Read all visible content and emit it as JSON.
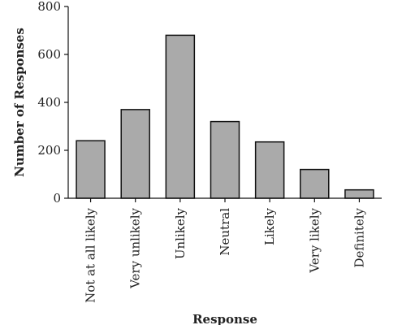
{
  "chart_data": {
    "type": "bar",
    "categories": [
      "Not at all likely",
      "Very unlikely",
      "Unlikely",
      "Neutral",
      "Likely",
      "Very likely",
      "Definitely"
    ],
    "values": [
      240,
      370,
      680,
      320,
      235,
      120,
      35
    ],
    "xlabel": "Response",
    "ylabel": "Number of Responses",
    "ylim": [
      0,
      800
    ],
    "yticks": [
      0,
      200,
      400,
      600,
      800
    ],
    "grid": false,
    "colors": {
      "bar_fill": "#aaaaaa",
      "bar_stroke": "#111111",
      "axis": "#111111"
    }
  }
}
